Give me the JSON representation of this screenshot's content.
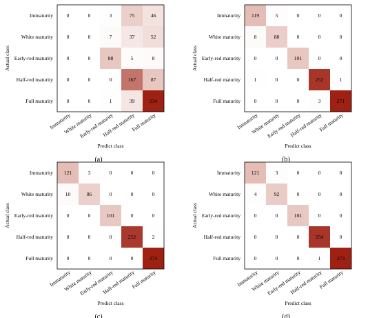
{
  "chart_data": [
    {
      "type": "heatmap",
      "panel_label": "(a)",
      "xlabel": "Predict class",
      "ylabel": "Actual class",
      "x_categories": [
        "Immaturity",
        "White maturity",
        "Early-red maturity",
        "Half-red maturity",
        "Full maturity"
      ],
      "y_categories": [
        "Immaturity",
        "White maturity",
        "Early-red maturity",
        "Half-red maturity",
        "Full maturity"
      ],
      "values": [
        [
          0,
          0,
          3,
          75,
          46
        ],
        [
          0,
          0,
          7,
          37,
          52
        ],
        [
          0,
          0,
          88,
          5,
          8
        ],
        [
          0,
          0,
          0,
          167,
          87
        ],
        [
          0,
          0,
          1,
          39,
          234
        ]
      ]
    },
    {
      "type": "heatmap",
      "panel_label": "(b)",
      "xlabel": "Predict class",
      "ylabel": "Actual class",
      "x_categories": [
        "Immaturity",
        "White maturity",
        "Early-red maturity",
        "Half-red maturity",
        "Full maturity"
      ],
      "y_categories": [
        "Immaturity",
        "White maturity",
        "Early-red maturity",
        "Half-red maturity",
        "Full maturity"
      ],
      "values": [
        [
          119,
          5,
          0,
          0,
          0
        ],
        [
          8,
          88,
          0,
          0,
          0
        ],
        [
          0,
          0,
          101,
          0,
          0
        ],
        [
          1,
          0,
          0,
          252,
          1
        ],
        [
          0,
          0,
          0,
          3,
          271
        ]
      ]
    },
    {
      "type": "heatmap",
      "panel_label": "(c)",
      "xlabel": "Predict class",
      "ylabel": "Actual class",
      "x_categories": [
        "Immaturity",
        "White maturity",
        "Early-red maturity",
        "Half-red maturity",
        "Full maturity"
      ],
      "y_categories": [
        "Immaturity",
        "White maturity",
        "Early-red maturity",
        "Half-red maturity",
        "Full maturity"
      ],
      "values": [
        [
          121,
          3,
          0,
          0,
          0
        ],
        [
          10,
          86,
          0,
          0,
          0
        ],
        [
          0,
          0,
          101,
          0,
          0
        ],
        [
          0,
          0,
          0,
          252,
          2
        ],
        [
          0,
          0,
          0,
          0,
          274
        ]
      ]
    },
    {
      "type": "heatmap",
      "panel_label": "(d)",
      "xlabel": "Predict class",
      "ylabel": "Actual class",
      "x_categories": [
        "Immaturity",
        "White maturity",
        "Early-red maturity",
        "Half-red maturity",
        "Full maturity"
      ],
      "y_categories": [
        "Immaturity",
        "White maturity",
        "Early-red maturity",
        "Half-red maturity",
        "Full maturity"
      ],
      "values": [
        [
          121,
          3,
          0,
          0,
          0
        ],
        [
          4,
          92,
          0,
          0,
          0
        ],
        [
          0,
          0,
          101,
          0,
          0
        ],
        [
          0,
          0,
          0,
          254,
          0
        ],
        [
          0,
          0,
          0,
          1,
          273
        ]
      ]
    }
  ],
  "colors": {
    "low": "#ffffff",
    "mid": "#e0b4ac",
    "high": "#9e2114"
  }
}
